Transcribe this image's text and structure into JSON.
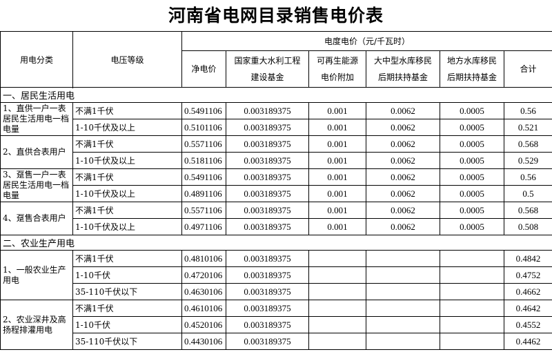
{
  "title": "河南省电网目录销售电价表",
  "header": {
    "category": "用电分类",
    "voltage": "电压等级",
    "price_group": "电度电价（元/千瓦时）",
    "columns": [
      {
        "line1": "净电价",
        "line2": ""
      },
      {
        "line1": "国家重大水利工程",
        "line2": "建设基金"
      },
      {
        "line1": "可再生能源",
        "line2": "电价附加"
      },
      {
        "line1": "大中型水库移民",
        "line2": "后期扶持基金"
      },
      {
        "line1": "地方水库移民",
        "line2": "后期扶持基金"
      },
      {
        "line1": "合计",
        "line2": ""
      }
    ]
  },
  "sections": [
    {
      "label": "一、居民生活用电",
      "groups": [
        {
          "category": "1、直供一户一表居民生活用电一档电量",
          "rows": [
            {
              "voltage": "不满1千伏",
              "values": [
                "0.5491106",
                "0.003189375",
                "0.001",
                "0.0062",
                "0.0005",
                "0.56"
              ]
            },
            {
              "voltage": "1-10千伏及以上",
              "values": [
                "0.5101106",
                "0.003189375",
                "0.001",
                "0.0062",
                "0.0005",
                "0.521"
              ]
            }
          ]
        },
        {
          "category": "2、直供合表用户",
          "rows": [
            {
              "voltage": "不满1千伏",
              "values": [
                "0.5571106",
                "0.003189375",
                "0.001",
                "0.0062",
                "0.0005",
                "0.568"
              ]
            },
            {
              "voltage": "1-10千伏及以上",
              "values": [
                "0.5181106",
                "0.003189375",
                "0.001",
                "0.0062",
                "0.0005",
                "0.529"
              ]
            }
          ]
        },
        {
          "category": "3、趸售一户一表居民生活用电一档电量",
          "rows": [
            {
              "voltage": "不满1千伏",
              "values": [
                "0.5491106",
                "0.003189375",
                "0.001",
                "0.0062",
                "0.0005",
                "0.56"
              ]
            },
            {
              "voltage": "1-10千伏及以上",
              "values": [
                "0.4891106",
                "0.003189375",
                "0.001",
                "0.0062",
                "0.0005",
                "0.5"
              ]
            }
          ]
        },
        {
          "category": "4、趸售合表用户",
          "rows": [
            {
              "voltage": "不满1千伏",
              "values": [
                "0.5571106",
                "0.003189375",
                "0.001",
                "0.0062",
                "0.0005",
                "0.568"
              ]
            },
            {
              "voltage": "1-10千伏及以上",
              "values": [
                "0.4971106",
                "0.003189375",
                "0.001",
                "0.0062",
                "0.0005",
                "0.508"
              ]
            }
          ]
        }
      ]
    },
    {
      "label": "二、农业生产用电",
      "groups": [
        {
          "category": "1、一般农业生产用电",
          "rows": [
            {
              "voltage": "不满1千伏",
              "values": [
                "0.4810106",
                "0.003189375",
                "",
                "",
                "",
                "0.4842"
              ]
            },
            {
              "voltage": "1-10千伏",
              "values": [
                "0.4720106",
                "0.003189375",
                "",
                "",
                "",
                "0.4752"
              ]
            },
            {
              "voltage": "35-110千伏以下",
              "values": [
                "0.4630106",
                "0.003189375",
                "",
                "",
                "",
                "0.4662"
              ]
            }
          ]
        },
        {
          "category": "2、农业深井及高扬程排灌用电",
          "rows": [
            {
              "voltage": "不满1千伏",
              "values": [
                "0.4610106",
                "0.003189375",
                "",
                "",
                "",
                "0.4642"
              ]
            },
            {
              "voltage": "1-10千伏",
              "values": [
                "0.4520106",
                "0.003189375",
                "",
                "",
                "",
                "0.4552"
              ]
            },
            {
              "voltage": "35-110千伏以下",
              "values": [
                "0.4430106",
                "0.003189375",
                "",
                "",
                "",
                "0.4462"
              ]
            }
          ]
        }
      ]
    }
  ]
}
